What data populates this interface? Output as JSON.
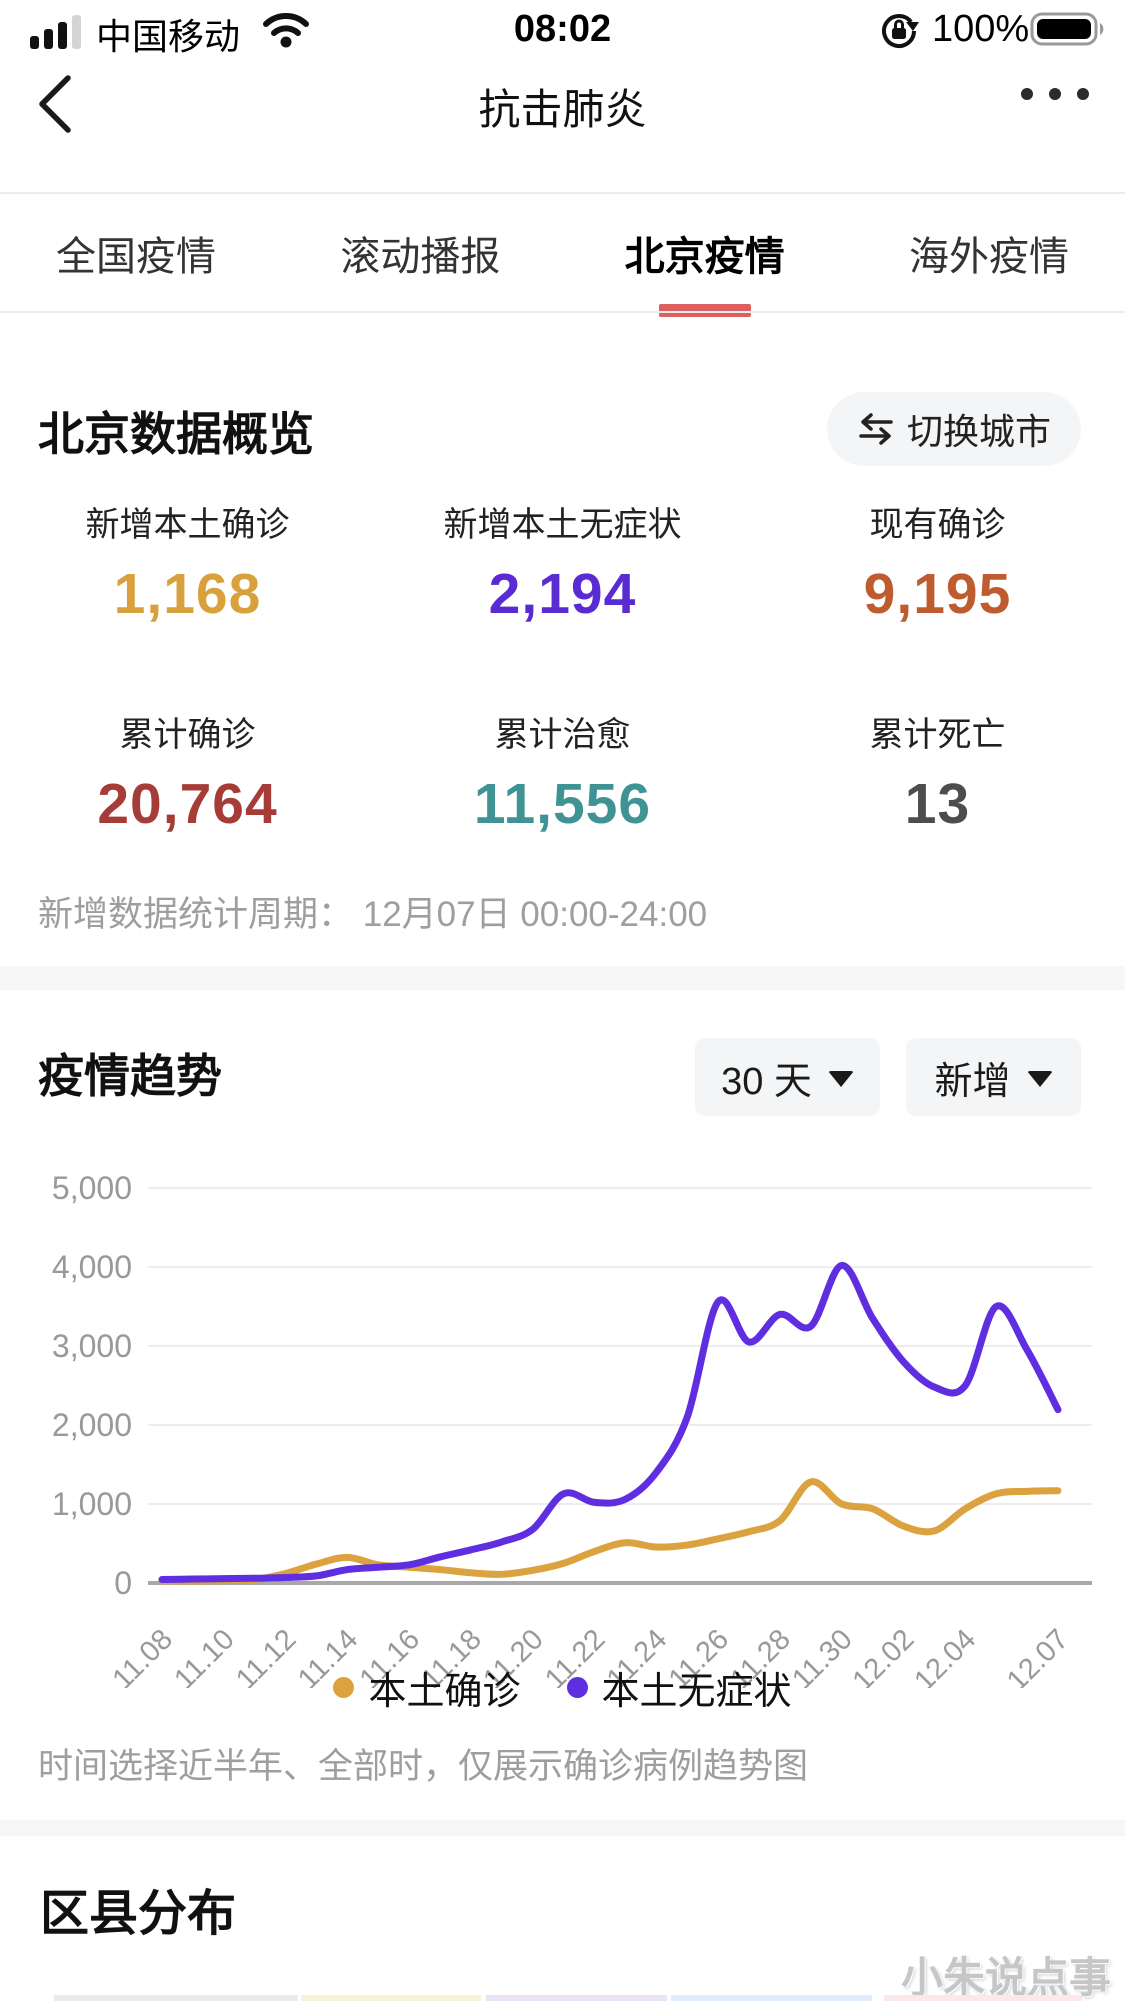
{
  "status_bar": {
    "carrier": "中国移动",
    "time": "08:02",
    "battery_percent": "100%"
  },
  "nav": {
    "title": "抗击肺炎"
  },
  "tabs": [
    {
      "label": "全国疫情",
      "active": false
    },
    {
      "label": "滚动播报",
      "active": false
    },
    {
      "label": "北京疫情",
      "active": true
    },
    {
      "label": "海外疫情",
      "active": false
    }
  ],
  "overview": {
    "title": "北京数据概览",
    "switch_city": "切换城市",
    "stats": [
      {
        "label": "新增本土确诊",
        "value": "1,168",
        "color": "#d8a13c"
      },
      {
        "label": "新增本土无症状",
        "value": "2,194",
        "color": "#5a2ad3"
      },
      {
        "label": "现有确诊",
        "value": "9,195",
        "color": "#bf5c2f"
      },
      {
        "label": "累计确诊",
        "value": "20,764",
        "color": "#a53c37"
      },
      {
        "label": "累计治愈",
        "value": "11,556",
        "color": "#409394"
      },
      {
        "label": "累计死亡",
        "value": "13",
        "color": "#4d4d4d"
      }
    ],
    "period_note": "新增数据统计周期： 12月07日 00:00-24:00"
  },
  "trend": {
    "title": "疫情趋势",
    "range_selector": "30 天",
    "metric_selector": "新增",
    "note": "时间选择近半年、全部时，仅展示确诊病例趋势图"
  },
  "chart_data": {
    "type": "line",
    "x": [
      "11.08",
      "11.09",
      "11.10",
      "11.11",
      "11.12",
      "11.13",
      "11.14",
      "11.15",
      "11.16",
      "11.17",
      "11.18",
      "11.19",
      "11.20",
      "11.21",
      "11.22",
      "11.23",
      "11.24",
      "11.25",
      "11.26",
      "11.27",
      "11.28",
      "11.29",
      "11.30",
      "12.01",
      "12.02",
      "12.03",
      "12.04",
      "12.05",
      "12.06",
      "12.07"
    ],
    "x_tick_labels": [
      "11.08",
      "11.10",
      "11.12",
      "11.14",
      "11.16",
      "11.18",
      "11.20",
      "11.22",
      "11.24",
      "11.26",
      "11.28",
      "11.30",
      "12.02",
      "12.04",
      "12.07"
    ],
    "series": [
      {
        "name": "本土确诊",
        "color": "#dba23f",
        "values": [
          25,
          25,
          30,
          45,
          120,
          240,
          325,
          230,
          200,
          170,
          130,
          110,
          160,
          250,
          400,
          510,
          455,
          480,
          560,
          650,
          790,
          1280,
          1000,
          940,
          720,
          660,
          940,
          1130,
          1160,
          1168
        ]
      },
      {
        "name": "本土无症状",
        "color": "#5f2ee0",
        "values": [
          45,
          50,
          55,
          60,
          70,
          90,
          170,
          200,
          230,
          330,
          420,
          520,
          680,
          1130,
          1020,
          1060,
          1400,
          2100,
          3560,
          3050,
          3400,
          3250,
          4020,
          3350,
          2800,
          2480,
          2500,
          3500,
          2950,
          2194
        ]
      }
    ],
    "ylim": [
      0,
      5000
    ],
    "yticks": [
      0,
      1000,
      2000,
      3000,
      4000,
      5000
    ],
    "grid": true,
    "legend_position": "bottom"
  },
  "district": {
    "title": "区县分布",
    "strip_colors": [
      "#ebebeb",
      "#f7f3d6",
      "#ece3f7",
      "#e1ecfb",
      "#fbe8e8"
    ]
  },
  "watermark": "小朱说点事",
  "colors": {
    "accent_red": "#dd5f5f",
    "axis_label": "#999999",
    "gridline": "#ededed",
    "axis_line": "#a8a8a8"
  }
}
